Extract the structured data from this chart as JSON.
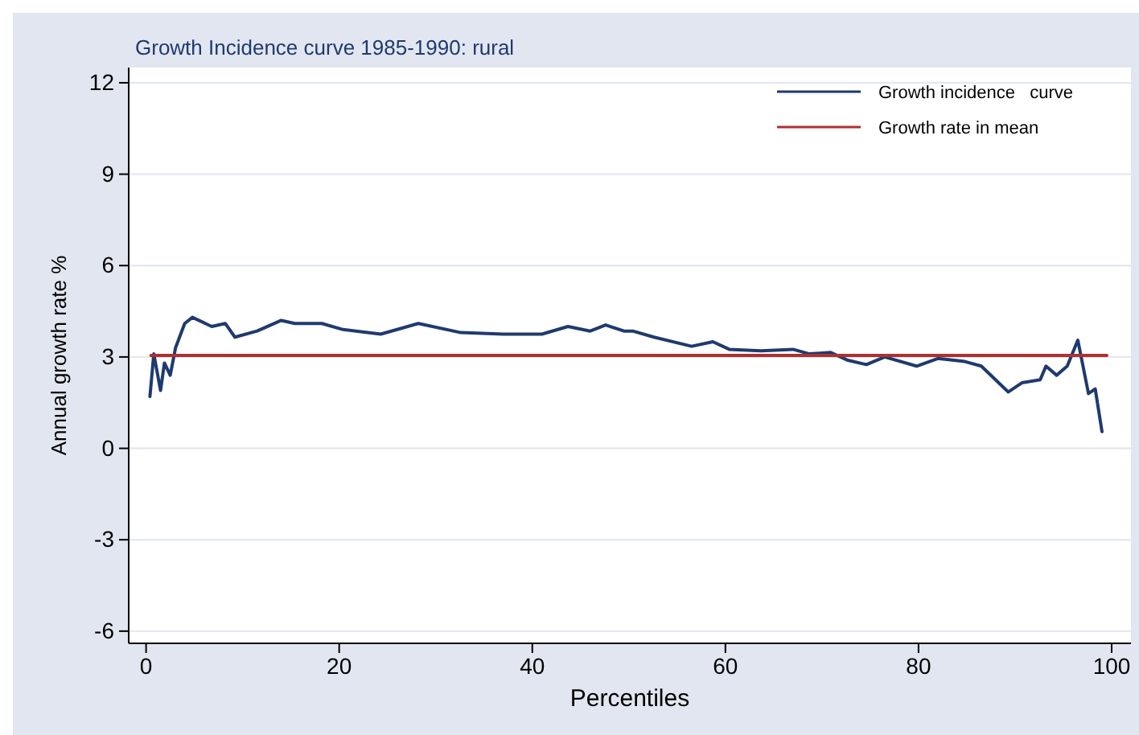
{
  "chart_data": {
    "type": "line",
    "title": "Growth Incidence curve 1985-1990: rural",
    "xlabel": "Percentiles",
    "ylabel": "Annual growth rate %",
    "xlim": [
      -1.8,
      102
    ],
    "ylim": [
      -6.4,
      12.5
    ],
    "xticks": [
      0,
      20,
      40,
      60,
      80,
      100
    ],
    "yticks": [
      -6,
      -3,
      0,
      3,
      6,
      9,
      12
    ],
    "grid": "y",
    "legend": "top right",
    "line_style": "solid",
    "marker": "none",
    "series": [
      {
        "name": "Growth incidence   curve",
        "color": "#1f3a6e",
        "x": [
          0.4,
          0.8,
          1.5,
          1.9,
          2.5,
          3.05,
          4.0,
          4.8,
          6.8,
          8.2,
          9.2,
          11.5,
          14,
          15.4,
          18.2,
          20.4,
          24.3,
          28.2,
          32.6,
          37,
          41,
          43.7,
          46,
          47.6,
          49.5,
          50.4,
          52.6,
          56.5,
          58.7,
          60.4,
          63.7,
          67,
          68.7,
          70.9,
          72.6,
          74.6,
          76.5,
          79.8,
          82,
          84.8,
          86.5,
          89.3,
          90.7,
          92.6,
          93.2,
          94.3,
          95.4,
          96.5,
          97.6,
          98.3,
          99
        ],
        "values": [
          1.7,
          3.1,
          1.9,
          2.8,
          2.4,
          3.3,
          4.1,
          4.3,
          4.0,
          4.1,
          3.65,
          3.85,
          4.2,
          4.1,
          4.1,
          3.9,
          3.75,
          4.1,
          3.8,
          3.75,
          3.75,
          4.0,
          3.85,
          4.05,
          3.85,
          3.85,
          3.65,
          3.35,
          3.5,
          3.25,
          3.2,
          3.25,
          3.1,
          3.15,
          2.9,
          2.75,
          3.0,
          2.7,
          2.95,
          2.85,
          2.7,
          1.85,
          2.15,
          2.25,
          2.7,
          2.4,
          2.7,
          3.55,
          1.8,
          1.95,
          0.55
        ]
      },
      {
        "name": "Growth rate in mean",
        "color": "#b03030",
        "x": [
          0.5,
          99.5
        ],
        "values": [
          3.05,
          3.05
        ]
      }
    ]
  }
}
